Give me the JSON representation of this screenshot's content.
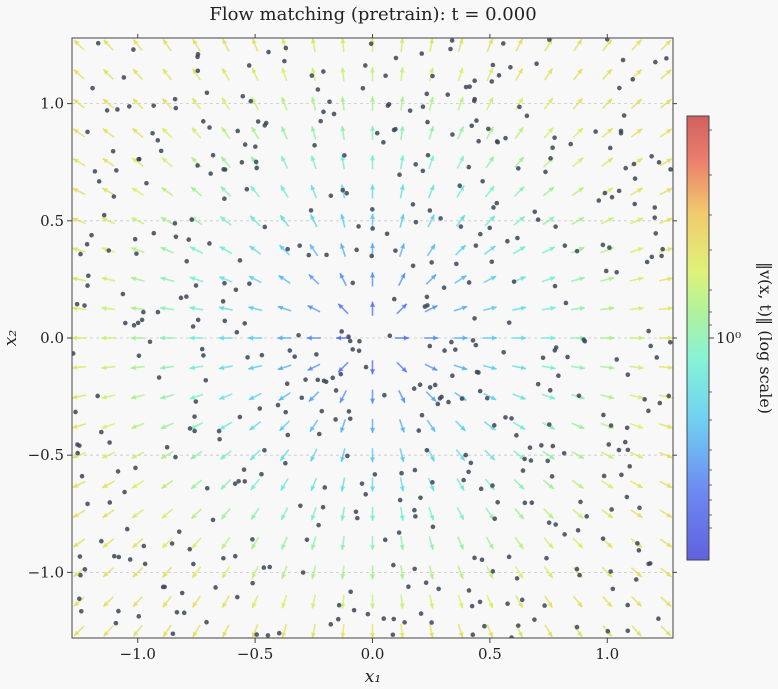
{
  "chart_data": {
    "type": "scatter",
    "title": "Flow matching (pretrain): t = 0.000",
    "xlabel": "x₁",
    "ylabel": "x₂",
    "xlim": [
      -1.28,
      1.28
    ],
    "ylim": [
      -1.28,
      1.28
    ],
    "xticks": [
      -1.0,
      -0.5,
      0.0,
      0.5,
      1.0
    ],
    "yticks": [
      -1.0,
      -0.5,
      0.0,
      0.5,
      1.0
    ],
    "xtick_labels": [
      "−1.0",
      "−0.5",
      "0.0",
      "0.5",
      "1.0"
    ],
    "ytick_labels": [
      "−1.0",
      "−0.5",
      "0.0",
      "0.5",
      "1.0"
    ],
    "grid": true,
    "field": {
      "description": "velocity arrows point radially outward from the origin",
      "grid_step": 0.125,
      "norm_scale": "log"
    },
    "points_count_estimate": 500,
    "point_color": "#3a4556",
    "colorbar": {
      "label": "‖v(x, t)‖ (log scale)",
      "tick_label": "10⁰",
      "colormap": "jet",
      "scale": "log"
    }
  }
}
